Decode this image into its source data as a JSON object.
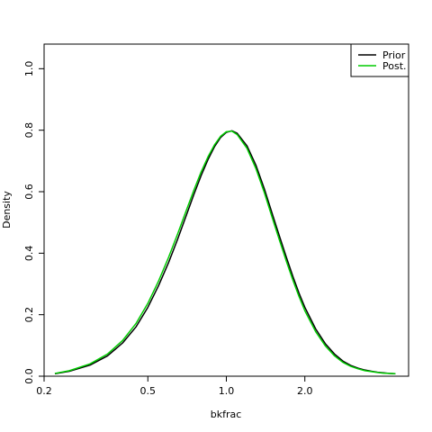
{
  "chart_data": {
    "type": "line",
    "title": "",
    "xlabel": "bkfrac",
    "ylabel": "Density",
    "x_scale": "log",
    "xlim": [
      0.2,
      5.0
    ],
    "ylim": [
      0.0,
      1.08
    ],
    "x_ticks": [
      0.2,
      0.5,
      1.0,
      2.0
    ],
    "x_tick_labels": [
      "0.2",
      "0.5",
      "1.0",
      "2.0"
    ],
    "y_ticks": [
      0.0,
      0.2,
      0.4,
      0.6,
      0.8,
      1.0
    ],
    "y_tick_labels": [
      "0.0",
      "0.2",
      "0.4",
      "0.6",
      "0.8",
      "1.0"
    ],
    "grid": false,
    "legend_position": "top-right",
    "series": [
      {
        "name": "Prior",
        "color": "#000000",
        "x": [
          0.22,
          0.25,
          0.3,
          0.35,
          0.4,
          0.45,
          0.5,
          0.55,
          0.6,
          0.65,
          0.7,
          0.75,
          0.8,
          0.85,
          0.9,
          0.95,
          1.0,
          1.05,
          1.1,
          1.2,
          1.3,
          1.4,
          1.5,
          1.6,
          1.7,
          1.8,
          1.9,
          2.0,
          2.2,
          2.4,
          2.6,
          2.8,
          3.0,
          3.2,
          3.4,
          3.6,
          3.8,
          4.0,
          4.2,
          4.45
        ],
        "y": [
          0.008,
          0.016,
          0.036,
          0.066,
          0.108,
          0.16,
          0.224,
          0.295,
          0.369,
          0.445,
          0.52,
          0.59,
          0.652,
          0.704,
          0.746,
          0.776,
          0.793,
          0.798,
          0.79,
          0.749,
          0.685,
          0.608,
          0.528,
          0.454,
          0.386,
          0.324,
          0.27,
          0.224,
          0.154,
          0.105,
          0.072,
          0.049,
          0.035,
          0.026,
          0.02,
          0.016,
          0.013,
          0.011,
          0.009,
          0.008
        ]
      },
      {
        "name": "Post.",
        "color": "#00cc00",
        "x": [
          0.22,
          0.25,
          0.3,
          0.35,
          0.4,
          0.45,
          0.5,
          0.55,
          0.6,
          0.65,
          0.7,
          0.75,
          0.8,
          0.85,
          0.9,
          0.95,
          1.0,
          1.05,
          1.1,
          1.2,
          1.3,
          1.4,
          1.5,
          1.6,
          1.7,
          1.8,
          1.9,
          2.0,
          2.2,
          2.4,
          2.6,
          2.8,
          3.0,
          3.2,
          3.4,
          3.6,
          3.8,
          4.0,
          4.2,
          4.45
        ],
        "y": [
          0.009,
          0.018,
          0.04,
          0.072,
          0.116,
          0.171,
          0.237,
          0.31,
          0.386,
          0.462,
          0.536,
          0.604,
          0.664,
          0.713,
          0.752,
          0.78,
          0.795,
          0.797,
          0.786,
          0.741,
          0.674,
          0.596,
          0.515,
          0.441,
          0.373,
          0.312,
          0.259,
          0.213,
          0.145,
          0.098,
          0.066,
          0.045,
          0.032,
          0.024,
          0.018,
          0.015,
          0.012,
          0.01,
          0.009,
          0.008
        ]
      }
    ]
  }
}
